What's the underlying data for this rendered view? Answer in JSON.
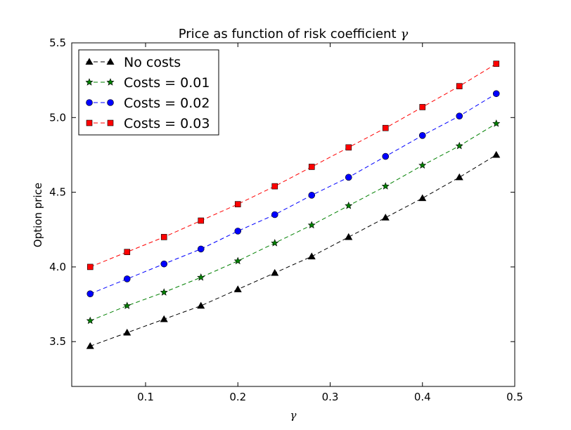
{
  "chart_data": {
    "type": "line",
    "title": "Price as function of risk coefficient",
    "title_symbol": "γ",
    "xlabel": "γ",
    "ylabel": "Option price",
    "xlim": [
      0.02,
      0.5
    ],
    "ylim": [
      3.2,
      5.5
    ],
    "xticks": [
      0.1,
      0.2,
      0.3,
      0.4,
      0.5
    ],
    "xtick_labels": [
      "0.1",
      "0.2",
      "0.3",
      "0.4",
      "0.5"
    ],
    "yticks": [
      3.5,
      4.0,
      4.5,
      5.0,
      5.5
    ],
    "ytick_labels": [
      "3.5",
      "4.0",
      "4.5",
      "5.0",
      "5.5"
    ],
    "grid": false,
    "legend_position": "top-left",
    "x": [
      0.04,
      0.08,
      0.12,
      0.16,
      0.2,
      0.24,
      0.28,
      0.32,
      0.36,
      0.4,
      0.44,
      0.48
    ],
    "series": [
      {
        "name": "No costs",
        "color": "#000000",
        "marker": "triangle",
        "values": [
          3.47,
          3.56,
          3.65,
          3.74,
          3.85,
          3.96,
          4.07,
          4.2,
          4.33,
          4.46,
          4.6,
          4.75
        ]
      },
      {
        "name": "Costs = 0.01",
        "color": "#008000",
        "marker": "star",
        "values": [
          3.64,
          3.74,
          3.83,
          3.93,
          4.04,
          4.16,
          4.28,
          4.41,
          4.54,
          4.68,
          4.81,
          4.96
        ]
      },
      {
        "name": "Costs = 0.02",
        "color": "#0000ff",
        "marker": "circle",
        "values": [
          3.82,
          3.92,
          4.02,
          4.12,
          4.24,
          4.35,
          4.48,
          4.6,
          4.74,
          4.88,
          5.01,
          5.16
        ]
      },
      {
        "name": "Costs = 0.03",
        "color": "#ff0000",
        "marker": "square",
        "values": [
          4.0,
          4.1,
          4.2,
          4.31,
          4.42,
          4.54,
          4.67,
          4.8,
          4.93,
          5.07,
          5.21,
          5.36
        ]
      }
    ]
  }
}
